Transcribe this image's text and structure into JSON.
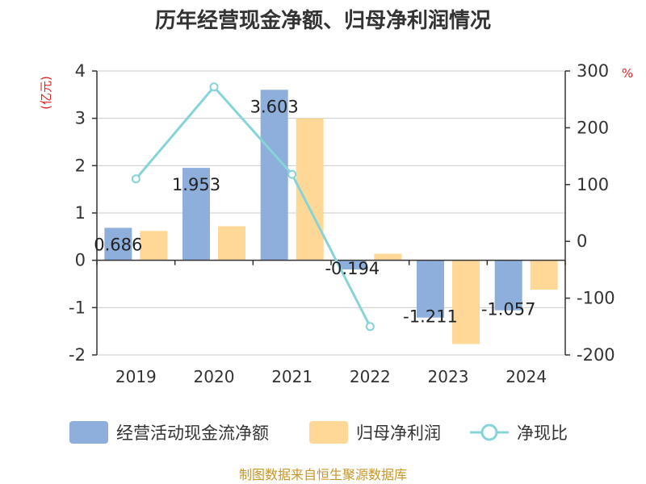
{
  "chart_data": {
    "type": "bar",
    "title": "历年经营现金净额、归母净利润情况",
    "left_unit": "(亿元)",
    "right_unit": "%",
    "categories": [
      "2019",
      "2020",
      "2021",
      "2022",
      "2023",
      "2024"
    ],
    "left_axis": {
      "min": -2,
      "max": 4,
      "ticks": [
        "4",
        "3",
        "2",
        "1",
        "0",
        "-1",
        "-2"
      ]
    },
    "right_axis": {
      "min": -200,
      "max": 300,
      "ticks": [
        "300",
        "200",
        "100",
        "0",
        "-100",
        "-200"
      ]
    },
    "series": [
      {
        "name": "经营活动现金流净额",
        "kind": "bar",
        "axis": "left",
        "color": "#8eaedc",
        "values": [
          0.686,
          1.953,
          3.603,
          -0.194,
          -1.211,
          -1.057
        ],
        "labels": [
          "0.686",
          "1.953",
          "3.603",
          "-0.194",
          "-1.211",
          "-1.057"
        ]
      },
      {
        "name": "归母净利润",
        "kind": "bar",
        "axis": "left",
        "color": "#ffd898",
        "values": [
          0.62,
          0.72,
          3.0,
          0.14,
          -1.77,
          -0.62
        ]
      },
      {
        "name": "净现比",
        "kind": "line",
        "axis": "right",
        "color": "#86d3d8",
        "values": [
          110,
          272,
          118,
          -150,
          null,
          null
        ]
      }
    ],
    "grid": true,
    "legend": "bottom"
  },
  "source": "制图数据来自恒生聚源数据库"
}
